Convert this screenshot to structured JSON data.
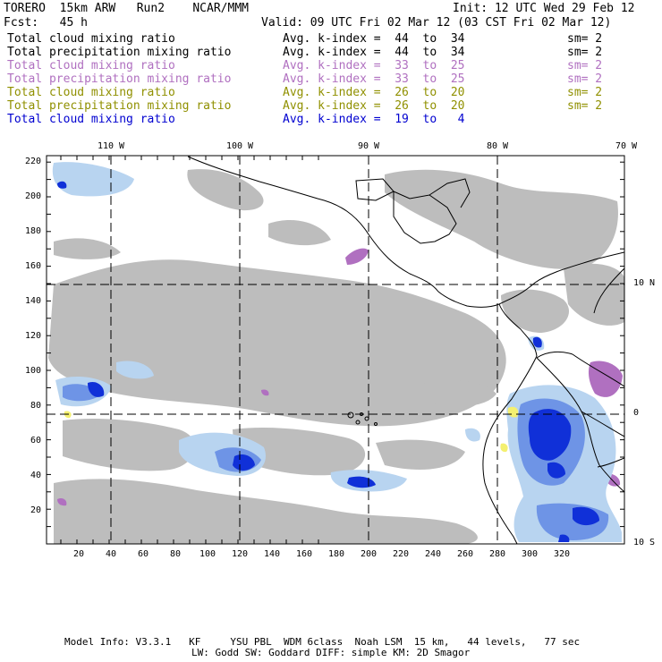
{
  "header": {
    "model": "TORERO",
    "resolution": "15km ARW",
    "run": "Run2",
    "org": "NCAR/MMM",
    "init": "Init: 12 UTC Wed 29 Feb 12",
    "fcst_label": "Fcst:",
    "fcst_value": "45 h",
    "valid": "Valid: 09 UTC Fri 02 Mar 12 (03 CST Fri 02 Mar 12)"
  },
  "legend": [
    {
      "field": "Total cloud mixing ratio",
      "kindex": "Avg. k-index =  44  to  34",
      "sm": "sm= 2",
      "color": "#000000"
    },
    {
      "field": "Total precipitation mixing ratio",
      "kindex": "Avg. k-index =  44  to  34",
      "sm": "sm= 2",
      "color": "#000000"
    },
    {
      "field": "Total cloud mixing ratio",
      "kindex": "Avg. k-index =  33  to  25",
      "sm": "sm= 2",
      "color": "#b070c0"
    },
    {
      "field": "Total precipitation mixing ratio",
      "kindex": "Avg. k-index =  33  to  25",
      "sm": "sm= 2",
      "color": "#b070c0"
    },
    {
      "field": "Total cloud mixing ratio",
      "kindex": "Avg. k-index =  26  to  20",
      "sm": "sm= 2",
      "color": "#909000"
    },
    {
      "field": "Total precipitation mixing ratio",
      "kindex": "Avg. k-index =  26  to  20",
      "sm": "sm= 2",
      "color": "#909000"
    },
    {
      "field": "Total cloud mixing ratio",
      "kindex": "Avg. k-index =  19  to   4",
      "sm": "",
      "color": "#0000d0"
    }
  ],
  "axes": {
    "top_lon": [
      "110 W",
      "100 W",
      "90 W",
      "80 W",
      "70 W"
    ],
    "right_lat": [
      "10 N",
      "0",
      "10 S"
    ],
    "left_y": [
      "220",
      "200",
      "180",
      "160",
      "140",
      "120",
      "100",
      "80",
      "60",
      "40",
      "20"
    ],
    "bottom_x": [
      "20",
      "40",
      "60",
      "80",
      "100",
      "120",
      "140",
      "160",
      "180",
      "200",
      "220",
      "240",
      "260",
      "280",
      "300",
      "320"
    ]
  },
  "footer": {
    "line1": "Model Info: V3.3.1   KF     YSU PBL  WDM 6class  Noah LSM  15 km,   44 levels,   77 sec",
    "line2": "LW: Godd SW: Goddard DIFF: simple KM: 2D Smagor"
  }
}
